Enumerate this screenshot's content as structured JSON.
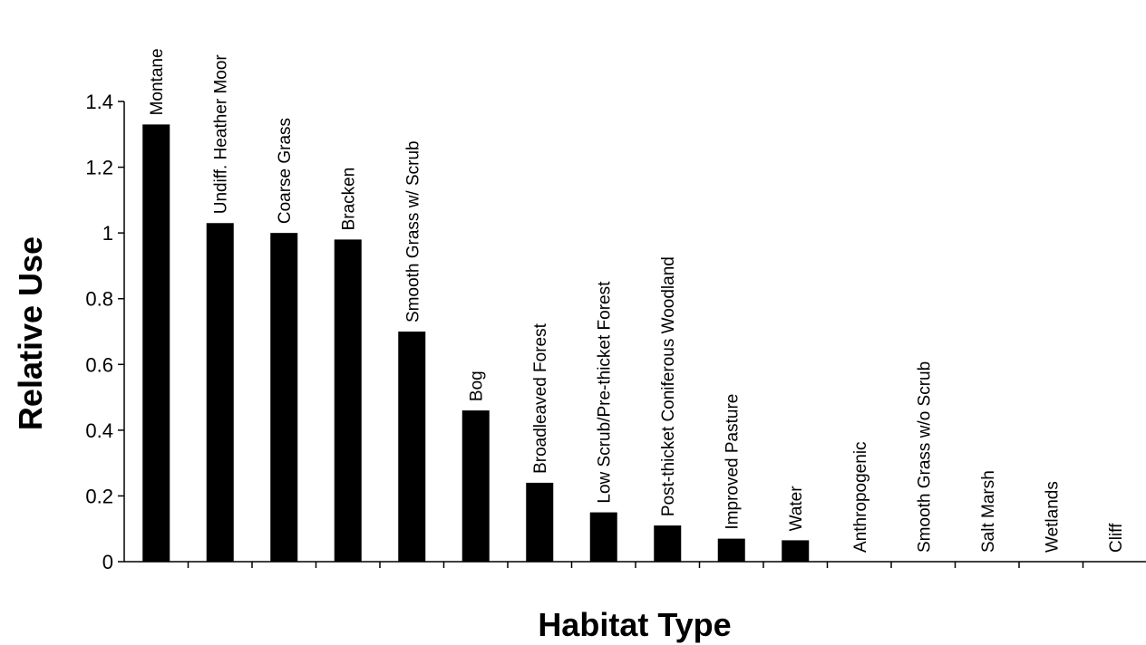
{
  "chart_data": {
    "type": "bar",
    "title": "",
    "xlabel": "Habitat Type",
    "ylabel": "Relative Use",
    "ylim": [
      0,
      1.4
    ],
    "yticks": [
      "0",
      "0.2",
      "0.4",
      "0.6",
      "0.8",
      "1",
      "1.2",
      "1.4"
    ],
    "categories": [
      "Montane",
      "Undiff. Heather Moor",
      "Coarse Grass",
      "Bracken",
      "Smooth Grass w/ Scrub",
      "Bog",
      "Broadleaved Forest",
      "Low Scrub/Pre-thicket Forest",
      "Post-thicket Coniferous Woodland",
      "Improved Pasture",
      "Water",
      "Anthropogenic",
      "Smooth Grass w/o Scrub",
      "Salt Marsh",
      "Wetlands",
      "Cliff"
    ],
    "values": [
      1.33,
      1.03,
      1.0,
      0.98,
      0.7,
      0.46,
      0.24,
      0.15,
      0.11,
      0.07,
      0.065,
      0,
      0,
      0,
      0,
      0
    ],
    "grid": false,
    "legend": "none",
    "bar_color": "#000000"
  }
}
